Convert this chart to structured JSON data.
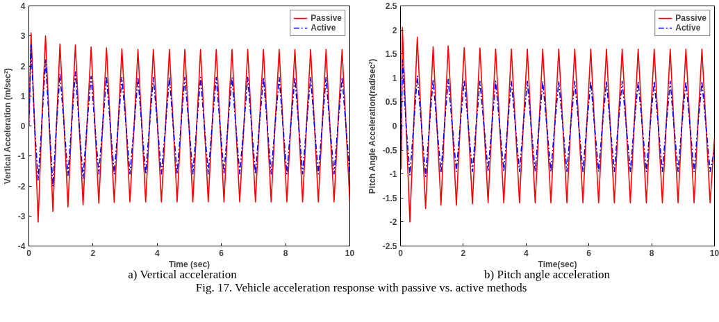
{
  "chart_data": [
    {
      "type": "line",
      "xlabel": "Time (sec)",
      "ylabel": "Vertical Acceleration (m/sec²)",
      "annotations": [
        "a) Vertical acceleration",
        "Fig. 17. Vehicle acceleration response with passive vs. active methods"
      ],
      "x": [
        0,
        0.07,
        0.18,
        0.29,
        0.4,
        0.52,
        0.64,
        0.75,
        0.86,
        0.97,
        1.1,
        1.22,
        1.33,
        1.45,
        1.57,
        1.69,
        1.81,
        1.94,
        2.06,
        2.18,
        2.3,
        2.42,
        2.54,
        2.66,
        2.78,
        2.9,
        3.03,
        3.15,
        3.28,
        3.4,
        3.52,
        3.64,
        3.76,
        3.88,
        4.01,
        4.13,
        4.26,
        4.38,
        4.5,
        4.62,
        4.74,
        4.86,
        4.99,
        5.11,
        5.23,
        5.35,
        5.47,
        5.59,
        5.71,
        5.84,
        5.96,
        6.08,
        6.2,
        6.33,
        6.45,
        6.57,
        6.7,
        6.82,
        6.94,
        7.06,
        7.18,
        7.31,
        7.43,
        7.55,
        7.67,
        7.8,
        7.92,
        8.04,
        8.16,
        8.29,
        8.41,
        8.53,
        8.65,
        8.78,
        8.9,
        9.02,
        9.14,
        9.26,
        9.38,
        9.51,
        9.63,
        9.76,
        9.88,
        10
      ],
      "series": [
        {
          "name": "Passive",
          "color": "#ff0000",
          "line_style": "solid",
          "values": [
            0,
            3.1,
            0,
            -3.2,
            0,
            3.0,
            0,
            -2.85,
            0,
            2.73,
            0,
            -2.7,
            0,
            2.7,
            0,
            -2.63,
            0,
            2.63,
            0,
            -2.57,
            0,
            2.6,
            0,
            -2.55,
            0,
            2.57,
            0,
            -2.53,
            0,
            2.55,
            0,
            -2.53,
            0,
            2.55,
            0,
            -2.53,
            0,
            2.55,
            0,
            -2.53,
            0,
            2.55,
            0,
            -2.53,
            0,
            2.55,
            0,
            -2.53,
            0,
            2.55,
            0,
            -2.53,
            0,
            2.55,
            0,
            -2.53,
            0,
            2.55,
            0,
            -2.53,
            0,
            2.55,
            0,
            -2.53,
            0,
            2.55,
            0,
            -2.53,
            0,
            2.55,
            0,
            -2.53,
            0,
            2.55,
            0,
            -2.53,
            0,
            2.55,
            0,
            -2.53,
            0,
            2.55,
            0,
            -2.5
          ]
        },
        {
          "name": "Active",
          "color": "#0000ff",
          "line_style": "dashdot",
          "values": [
            0,
            2.7,
            0,
            -1.8,
            0,
            2.2,
            0,
            -2.0,
            0,
            1.75,
            0,
            -1.65,
            0,
            1.8,
            0,
            -1.75,
            0,
            1.65,
            0,
            -1.6,
            0,
            1.65,
            0,
            -1.6,
            0,
            1.62,
            0,
            -1.6,
            0,
            1.62,
            0,
            -1.6,
            0,
            1.62,
            0,
            -1.6,
            0,
            1.62,
            0,
            -1.6,
            0,
            1.62,
            0,
            -1.6,
            0,
            1.62,
            0,
            -1.6,
            0,
            1.62,
            0,
            -1.6,
            0,
            1.62,
            0,
            -1.6,
            0,
            1.62,
            0,
            -1.6,
            0,
            1.62,
            0,
            -1.6,
            0,
            1.62,
            0,
            -1.6,
            0,
            1.62,
            0,
            -1.6,
            0,
            1.62,
            0,
            -1.6,
            0,
            1.62,
            0,
            -1.6,
            0,
            1.62,
            0,
            -1.6
          ]
        }
      ],
      "xlim": [
        0,
        10
      ],
      "xticks": [
        0,
        2,
        4,
        6,
        8,
        10
      ],
      "ylim": [
        -4,
        4
      ],
      "yticks": [
        -4,
        -3,
        -2,
        -1,
        0,
        1,
        2,
        3,
        4
      ],
      "grid": false,
      "legend": "top right"
    },
    {
      "type": "line",
      "xlabel": "Time(sec)",
      "ylabel": "Pitch Angle Acceleration(rad/sec²)",
      "annotations": [
        "b) Pitch angle acceleration"
      ],
      "x": [
        0,
        0.02,
        0.06,
        0.18,
        0.3,
        0.42,
        0.535,
        0.67,
        0.8,
        0.92,
        1.04,
        1.16,
        1.29,
        1.4,
        1.52,
        1.65,
        1.78,
        1.9,
        2.03,
        2.16,
        2.29,
        2.41,
        2.53,
        2.66,
        2.79,
        2.91,
        3.03,
        3.16,
        3.29,
        3.41,
        3.53,
        3.66,
        3.79,
        3.91,
        4.04,
        4.16,
        4.29,
        4.41,
        4.53,
        4.66,
        4.79,
        4.91,
        5.04,
        5.17,
        5.3,
        5.42,
        5.55,
        5.68,
        5.81,
        5.93,
        6.06,
        6.18,
        6.31,
        6.43,
        6.56,
        6.68,
        6.81,
        6.93,
        7.06,
        7.19,
        7.32,
        7.44,
        7.57,
        7.7,
        7.83,
        7.95,
        8.08,
        8.21,
        8.34,
        8.46,
        8.59,
        8.71,
        8.84,
        8.96,
        9.09,
        9.22,
        9.35,
        9.47,
        9.6,
        9.73,
        9.86,
        10
      ],
      "series": [
        {
          "name": "Passive",
          "color": "#ff0000",
          "line_style": "solid",
          "values": [
            0,
            -0.9,
            2.05,
            0,
            -2.0,
            0,
            1.85,
            0,
            -1.72,
            0,
            1.65,
            0,
            -1.65,
            0,
            1.67,
            0,
            -1.65,
            0,
            1.63,
            0,
            -1.62,
            0,
            1.62,
            0,
            -1.6,
            0,
            1.6,
            0,
            -1.6,
            0,
            1.6,
            0,
            -1.6,
            0,
            1.6,
            0,
            -1.6,
            0,
            1.6,
            0,
            -1.6,
            0,
            1.6,
            0,
            -1.6,
            0,
            1.6,
            0,
            -1.6,
            0,
            1.6,
            0,
            -1.6,
            0,
            1.6,
            0,
            -1.6,
            0,
            1.6,
            0,
            -1.6,
            0,
            1.6,
            0,
            -1.6,
            0,
            1.6,
            0,
            -1.6,
            0,
            1.6,
            0,
            -1.6,
            0,
            1.6,
            0,
            -1.6,
            0,
            1.6,
            0,
            -1.6,
            -0.25
          ]
        },
        {
          "name": "Active",
          "color": "#0000ff",
          "line_style": "dashdot",
          "values": [
            0,
            -0.5,
            1.38,
            0,
            -1.02,
            0,
            1.05,
            0,
            -1.05,
            0,
            0.97,
            0,
            -0.97,
            0,
            0.97,
            0,
            -0.95,
            0,
            0.95,
            0,
            -0.95,
            0,
            0.93,
            0,
            -0.95,
            0,
            0.93,
            0,
            -0.95,
            0,
            0.93,
            0,
            -0.95,
            0,
            0.93,
            0,
            -0.95,
            0,
            0.93,
            0,
            -0.95,
            0,
            0.93,
            0,
            -0.95,
            0,
            0.93,
            0,
            -0.95,
            0,
            0.93,
            0,
            -0.95,
            0,
            0.93,
            0,
            -0.95,
            0,
            0.93,
            0,
            -0.95,
            0,
            0.93,
            0,
            -0.95,
            0,
            0.93,
            0,
            -0.95,
            0,
            0.93,
            0,
            -0.95,
            0,
            0.93,
            0,
            -0.95,
            0,
            0.93,
            0,
            -0.95,
            -0.5
          ]
        }
      ],
      "xlim": [
        0,
        10
      ],
      "xticks": [
        0,
        2,
        4,
        6,
        8,
        10
      ],
      "ylim": [
        -2.5,
        2.5
      ],
      "yticks": [
        -2.5,
        -2,
        -1.5,
        -1,
        -0.5,
        0,
        0.5,
        1,
        1.5,
        2,
        2.5
      ],
      "grid": false,
      "legend": "top right"
    }
  ]
}
